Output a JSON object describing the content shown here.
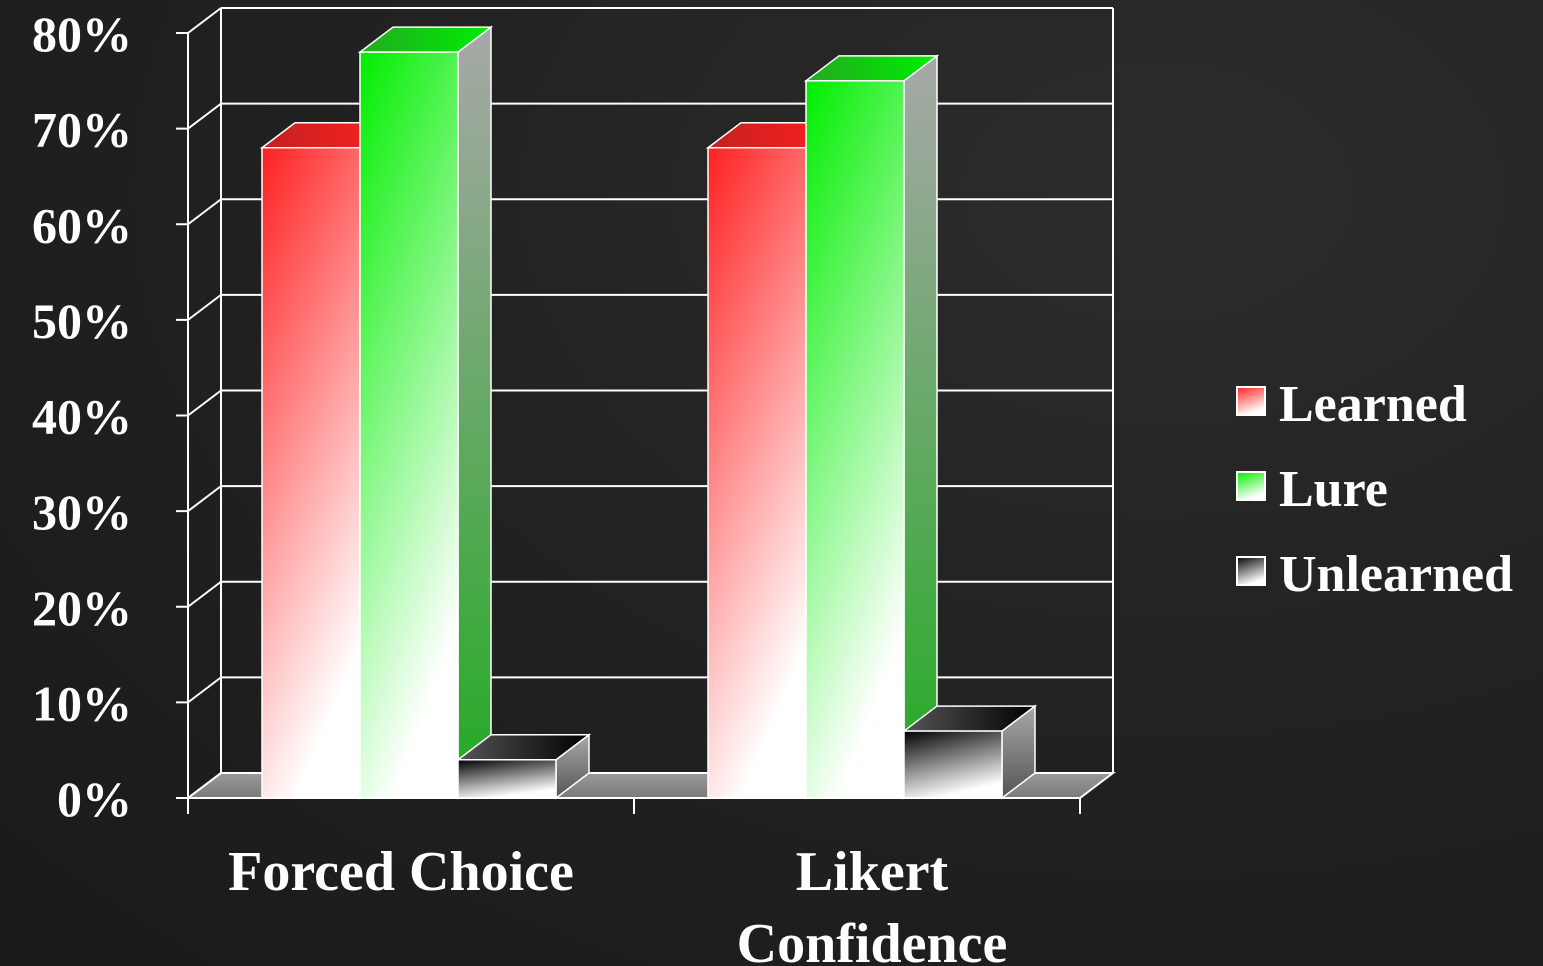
{
  "chart_data": {
    "type": "bar",
    "style": "3d-clustered",
    "categories": [
      [
        "Forced Choice"
      ],
      [
        "Likert",
        "Confidence"
      ]
    ],
    "series": [
      {
        "name": "Learned",
        "values": [
          68,
          68
        ],
        "color_top": "#ff2020",
        "color_bottom": "#ffffff",
        "side": "#c42020"
      },
      {
        "name": "Lure",
        "values": [
          78,
          75
        ],
        "color_top": "#00ee00",
        "color_bottom": "#ffffff",
        "side": "#22aa22"
      },
      {
        "name": "Unlearned",
        "values": [
          4,
          7
        ],
        "color_top": "#000000",
        "color_bottom": "#ffffff",
        "side": "#555555"
      }
    ],
    "y_ticks": [
      "0%",
      "10%",
      "20%",
      "30%",
      "40%",
      "50%",
      "60%",
      "70%",
      "80%"
    ],
    "ylim": [
      0,
      80
    ],
    "grid": true,
    "legend_position": "right",
    "title": "",
    "xlabel": "",
    "ylabel": ""
  }
}
